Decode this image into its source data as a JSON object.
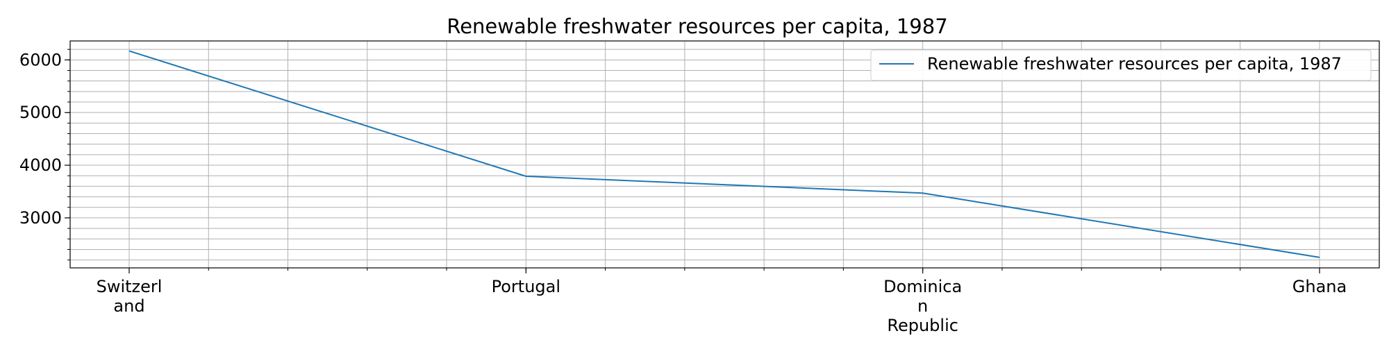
{
  "chart_data": {
    "type": "line",
    "title": "Renewable freshwater resources per capita, 1987",
    "xlabel": "",
    "ylabel": "",
    "categories": [
      [
        "Switzerl",
        "and"
      ],
      [
        "Portugal"
      ],
      [
        "Dominica",
        "n",
        "Republic"
      ],
      [
        "Ghana"
      ]
    ],
    "series": [
      {
        "name": "Renewable freshwater resources per capita, 1987",
        "values": [
          6170,
          3790,
          3470,
          2250
        ],
        "color": "#1f77b4"
      }
    ],
    "y_ticks": [
      3000,
      4000,
      5000,
      6000
    ],
    "ylim": [
      2050,
      6360
    ],
    "grid": true,
    "legend_position": "top-right"
  }
}
